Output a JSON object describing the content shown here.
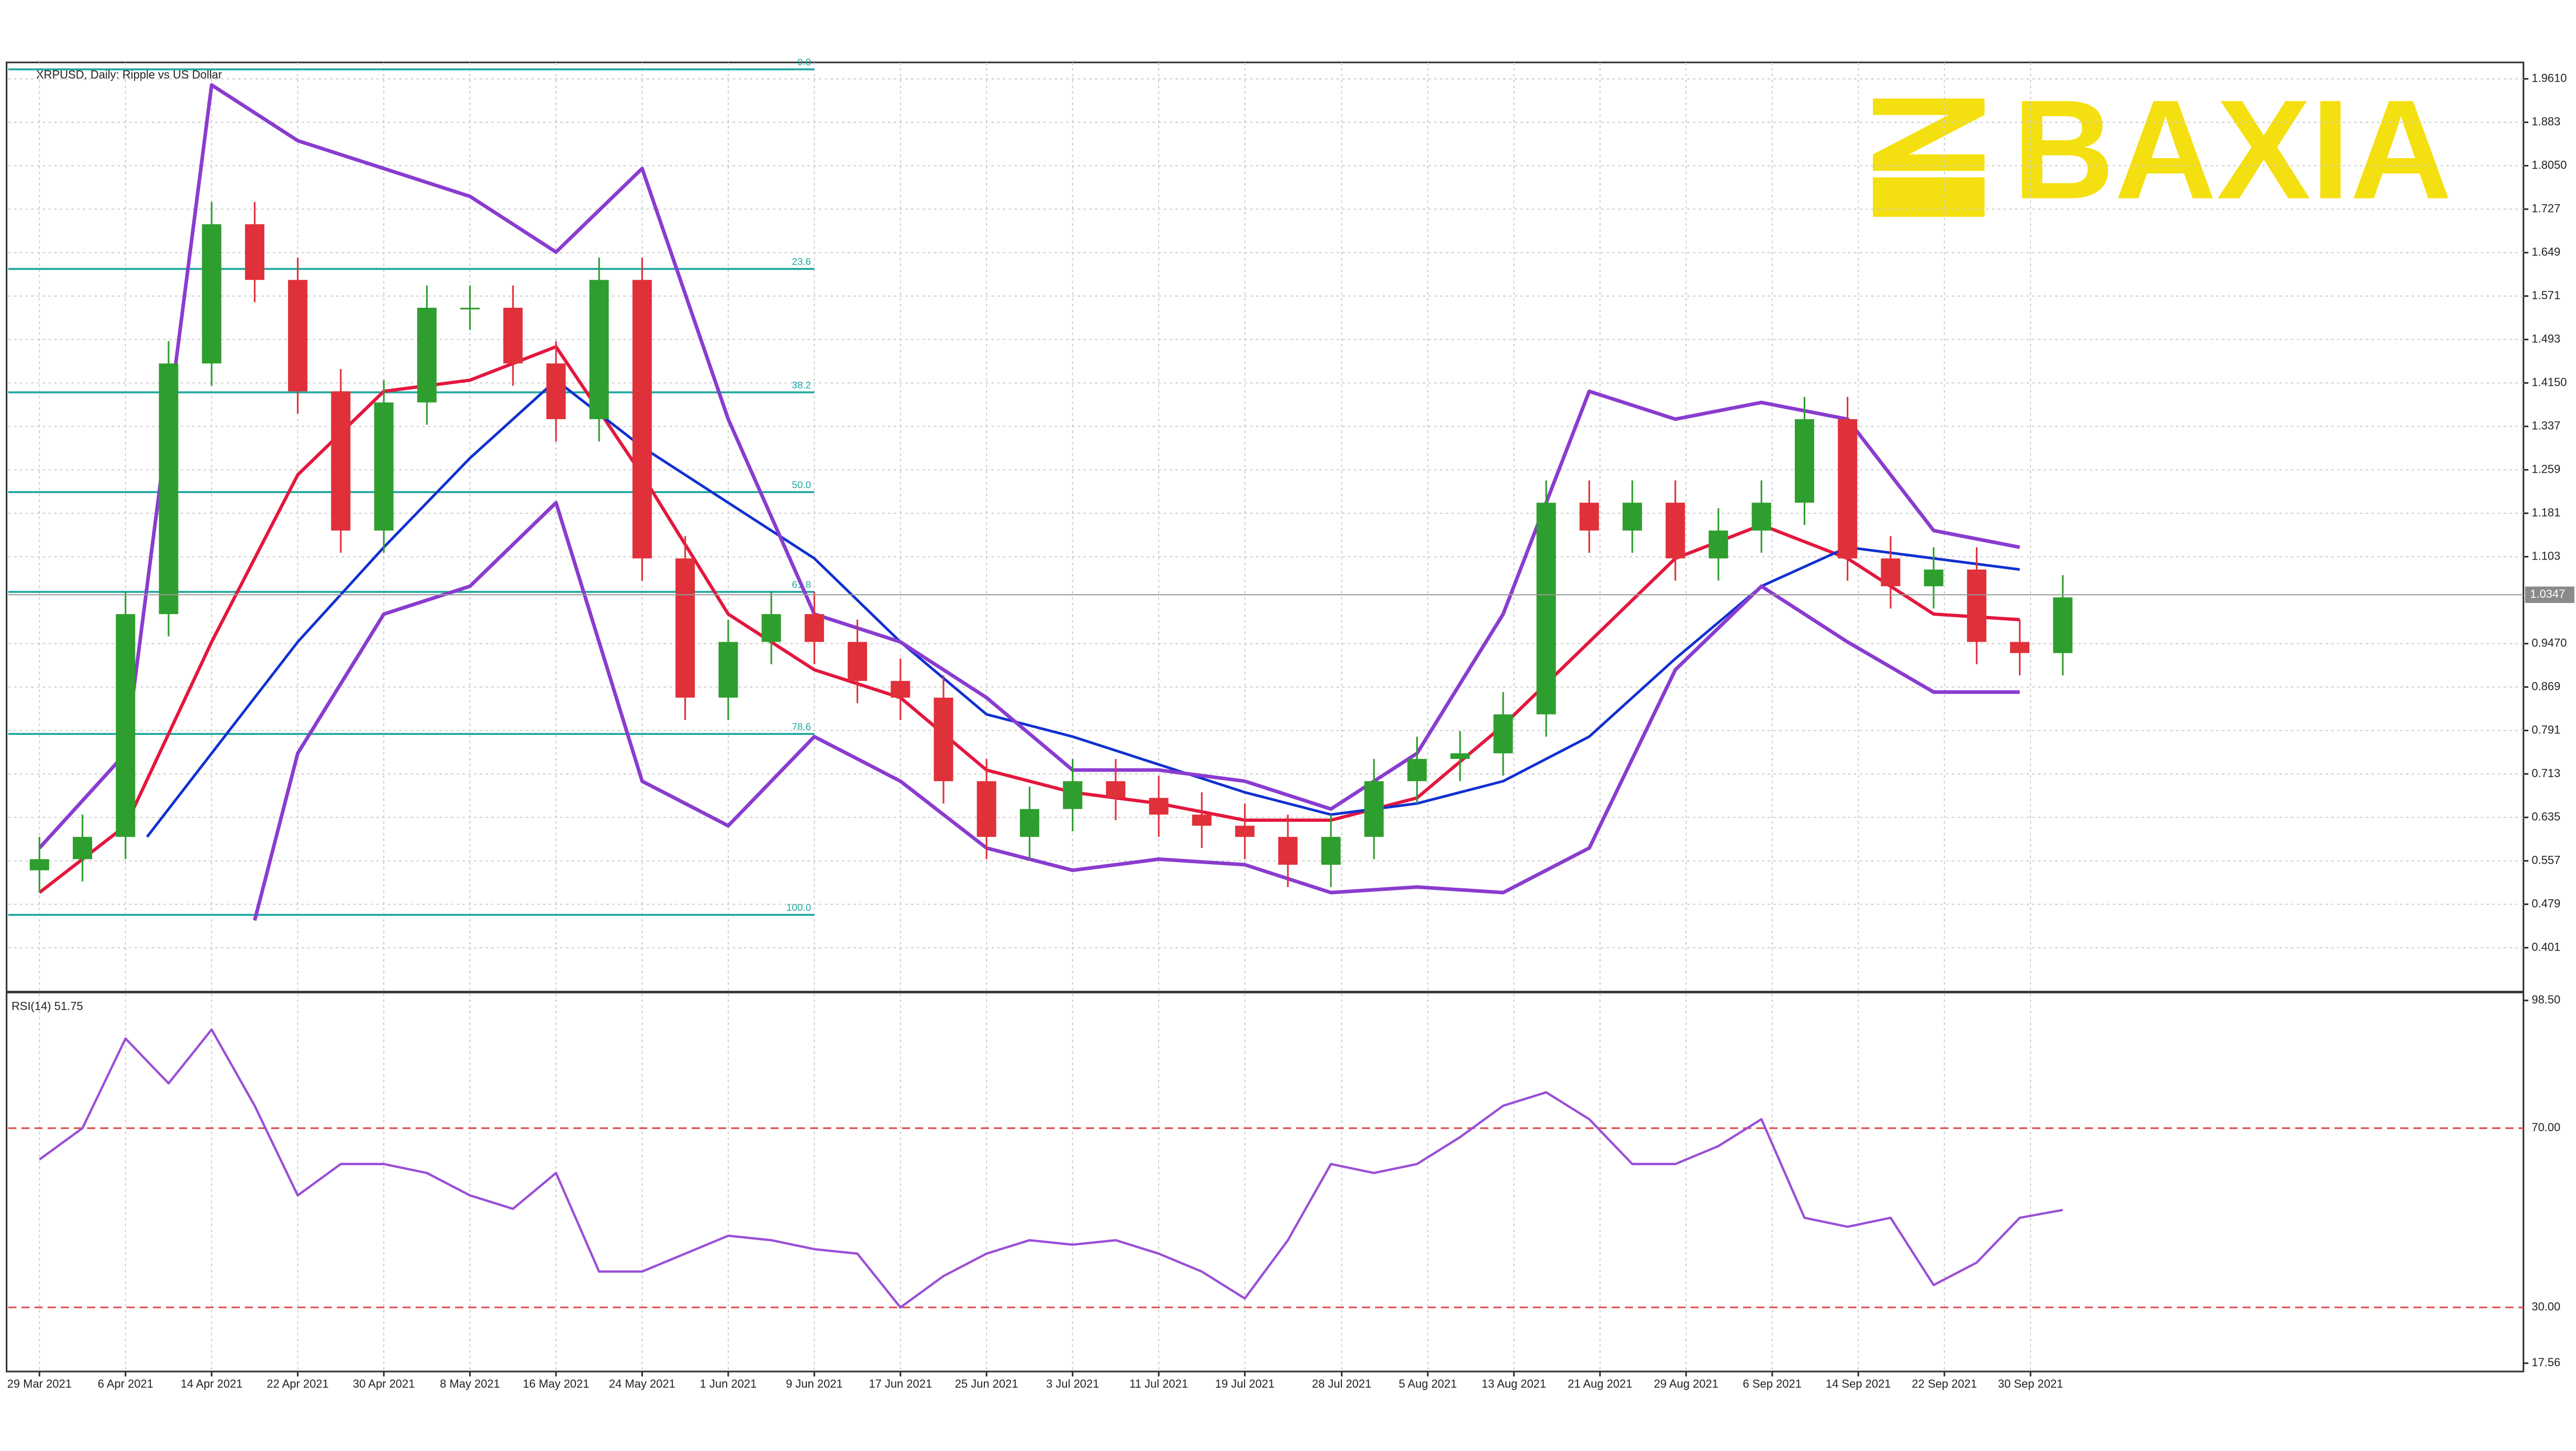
{
  "chart_data": {
    "type": "candlestick",
    "title": "XRPUSD, Daily: Ripple vs US Dollar",
    "logo": "BAXIA",
    "xlim": [
      -2.9,
      230.8
    ],
    "ylim": [
      0.3243,
      1.9905
    ],
    "grid": true,
    "xticks": [
      {
        "value": 0,
        "label": "29 Mar 2021"
      },
      {
        "value": 8,
        "label": "6 Apr 2021"
      },
      {
        "value": 16,
        "label": "14 Apr 2021"
      },
      {
        "value": 24,
        "label": "22 Apr 2021"
      },
      {
        "value": 32,
        "label": "30 Apr 2021"
      },
      {
        "value": 40,
        "label": "8 May 2021"
      },
      {
        "value": 48,
        "label": "16 May 2021"
      },
      {
        "value": 56,
        "label": "24 May 2021"
      },
      {
        "value": 64,
        "label": "1 Jun 2021"
      },
      {
        "value": 72,
        "label": "9 Jun 2021"
      },
      {
        "value": 80,
        "label": "17 Jun 2021"
      },
      {
        "value": 88,
        "label": "25 Jun 2021"
      },
      {
        "value": 96,
        "label": "3 Jul 2021"
      },
      {
        "value": 104,
        "label": "11 Jul 2021"
      },
      {
        "value": 112,
        "label": "19 Jul 2021"
      },
      {
        "value": 121,
        "label": "28 Jul 2021"
      },
      {
        "value": 129,
        "label": "5 Aug 2021"
      },
      {
        "value": 137,
        "label": "13 Aug 2021"
      },
      {
        "value": 145,
        "label": "21 Aug 2021"
      },
      {
        "value": 153,
        "label": "29 Aug 2021"
      },
      {
        "value": 161,
        "label": "6 Sep 2021"
      },
      {
        "value": 169,
        "label": "14 Sep 2021"
      },
      {
        "value": 177,
        "label": "22 Sep 2021"
      },
      {
        "value": 185,
        "label": "30 Sep 2021"
      }
    ],
    "yticks": [
      {
        "value": 1.961,
        "label": "1.9610"
      },
      1.883,
      {
        "value": 1.805,
        "label": "1.8050"
      },
      1.727,
      1.649,
      1.571,
      1.493,
      {
        "value": 1.415,
        "label": "1.4150"
      },
      1.337,
      1.259,
      1.181,
      1.103,
      {
        "value": 0.947,
        "label": "0.9470"
      },
      0.869,
      0.791,
      0.713,
      0.635,
      0.557,
      0.479,
      0.401
    ],
    "last_price": 1.0347,
    "candles": {
      "x": [
        0,
        4,
        8,
        12,
        16,
        20,
        24,
        28,
        32,
        36,
        40,
        44,
        48,
        52,
        56,
        60,
        64,
        68,
        72,
        76,
        80,
        84,
        88,
        92,
        96,
        100,
        104,
        108,
        112,
        116,
        120,
        124,
        128,
        132,
        136,
        140,
        144,
        148,
        152,
        156,
        160,
        164,
        168,
        172,
        176,
        180,
        184,
        188
      ],
      "open": [
        0.54,
        0.56,
        0.6,
        1.0,
        1.45,
        1.7,
        1.6,
        1.4,
        1.15,
        1.38,
        1.55,
        1.55,
        1.45,
        1.35,
        1.6,
        1.1,
        0.85,
        0.95,
        1.0,
        0.95,
        0.88,
        0.85,
        0.7,
        0.6,
        0.65,
        0.7,
        0.67,
        0.64,
        0.62,
        0.6,
        0.55,
        0.6,
        0.7,
        0.74,
        0.75,
        0.82,
        1.2,
        1.15,
        1.2,
        1.1,
        1.15,
        1.2,
        1.35,
        1.1,
        1.05,
        1.08,
        0.95,
        0.93
      ],
      "high": [
        0.6,
        0.64,
        1.04,
        1.49,
        1.74,
        1.74,
        1.64,
        1.44,
        1.42,
        1.59,
        1.59,
        1.59,
        1.49,
        1.64,
        1.64,
        1.14,
        0.99,
        1.04,
        1.04,
        0.99,
        0.92,
        0.89,
        0.74,
        0.69,
        0.74,
        0.74,
        0.71,
        0.68,
        0.66,
        0.64,
        0.64,
        0.74,
        0.78,
        0.79,
        0.86,
        1.24,
        1.24,
        1.24,
        1.24,
        1.19,
        1.24,
        1.39,
        1.39,
        1.14,
        1.12,
        1.12,
        0.99,
        1.07
      ],
      "low": [
        0.5,
        0.52,
        0.56,
        0.96,
        1.41,
        1.56,
        1.36,
        1.11,
        1.11,
        1.34,
        1.51,
        1.41,
        1.31,
        1.31,
        1.06,
        0.81,
        0.81,
        0.91,
        0.91,
        0.84,
        0.81,
        0.66,
        0.56,
        0.56,
        0.61,
        0.63,
        0.6,
        0.58,
        0.56,
        0.51,
        0.51,
        0.56,
        0.66,
        0.7,
        0.71,
        0.78,
        1.11,
        1.11,
        1.06,
        1.06,
        1.11,
        1.16,
        1.06,
        1.01,
        1.01,
        0.91,
        0.89,
        0.89
      ],
      "close": [
        0.56,
        0.6,
        1.0,
        1.45,
        1.7,
        1.6,
        1.4,
        1.15,
        1.38,
        1.55,
        1.55,
        1.45,
        1.35,
        1.6,
        1.1,
        0.85,
        0.95,
        1.0,
        0.95,
        0.88,
        0.85,
        0.7,
        0.6,
        0.65,
        0.7,
        0.67,
        0.64,
        0.62,
        0.6,
        0.55,
        0.6,
        0.7,
        0.74,
        0.75,
        0.82,
        1.2,
        1.15,
        1.2,
        1.1,
        1.15,
        1.2,
        1.35,
        1.1,
        1.05,
        1.08,
        0.95,
        0.93,
        1.03
      ],
      "up_color": "#2e9e2e",
      "down_color": "#e0303a"
    },
    "lines": [
      {
        "color": "#e3173e",
        "width": 2,
        "x": [
          0,
          8,
          16,
          24,
          32,
          40,
          48,
          56,
          64,
          72,
          80,
          88,
          96,
          104,
          112,
          120,
          128,
          136,
          144,
          152,
          160,
          168,
          176,
          184
        ],
        "values": [
          0.5,
          0.62,
          0.95,
          1.25,
          1.4,
          1.42,
          1.48,
          1.25,
          1.0,
          0.9,
          0.85,
          0.72,
          0.68,
          0.66,
          0.63,
          0.63,
          0.67,
          0.8,
          0.95,
          1.1,
          1.16,
          1.1,
          1.0,
          0.99
        ]
      },
      {
        "color": "#1030d0",
        "width": 1.6,
        "x": [
          10,
          16,
          24,
          32,
          40,
          48,
          56,
          64,
          72,
          80,
          88,
          96,
          104,
          112,
          120,
          128,
          136,
          144,
          152,
          160,
          168,
          176,
          184
        ],
        "values": [
          0.6,
          0.75,
          0.95,
          1.12,
          1.28,
          1.42,
          1.3,
          1.2,
          1.1,
          0.95,
          0.82,
          0.78,
          0.73,
          0.68,
          0.64,
          0.66,
          0.7,
          0.78,
          0.92,
          1.05,
          1.12,
          1.1,
          1.08
        ]
      },
      {
        "color": "#8a3ccf",
        "width": 2.2,
        "x": [
          0,
          8,
          16,
          24,
          32,
          40,
          48,
          56,
          64,
          72,
          80,
          88,
          96,
          104,
          112,
          120,
          128,
          136,
          144,
          152,
          160,
          168,
          176,
          184
        ],
        "values": [
          0.58,
          0.75,
          1.95,
          1.85,
          1.8,
          1.75,
          1.65,
          1.8,
          1.35,
          1.0,
          0.95,
          0.85,
          0.72,
          0.72,
          0.7,
          0.65,
          0.75,
          1.0,
          1.4,
          1.35,
          1.38,
          1.35,
          1.15,
          1.12
        ]
      },
      {
        "color": "#8a3ccf",
        "width": 2.2,
        "x": [
          20,
          24,
          32,
          40,
          48,
          56,
          64,
          72,
          80,
          88,
          96,
          104,
          112,
          120,
          128,
          136,
          144,
          152,
          160,
          168,
          176,
          184
        ],
        "values": [
          0.45,
          0.75,
          1.0,
          1.05,
          1.2,
          0.7,
          0.62,
          0.78,
          0.7,
          0.58,
          0.54,
          0.56,
          0.55,
          0.5,
          0.51,
          0.5,
          0.58,
          0.9,
          1.05,
          0.95,
          0.86,
          0.86
        ]
      }
    ],
    "fib": {
      "high": 1.978,
      "low": 0.46,
      "x_end": 72,
      "color": "#20a8a0",
      "levels": [
        {
          "value": 0,
          "label": "0.0"
        },
        23.6,
        38.2,
        {
          "value": 50,
          "label": "50.0"
        },
        61.8,
        78.6,
        {
          "value": 100,
          "label": "100.0"
        }
      ]
    },
    "rsi": {
      "label": "RSI(14) 51.75",
      "color": "#9a4fd6",
      "ylim": [
        15.7,
        100
      ],
      "yticks": [
        {
          "value": 98.5,
          "label": "98.50"
        },
        17.56
      ],
      "levels": [
        {
          "value": 70,
          "label": "70.00"
        },
        {
          "value": 30,
          "label": "30.00"
        }
      ],
      "level_color": "#e05050",
      "x": [
        0,
        4,
        8,
        12,
        16,
        20,
        24,
        28,
        32,
        36,
        40,
        44,
        48,
        52,
        56,
        60,
        64,
        68,
        72,
        76,
        80,
        84,
        88,
        92,
        96,
        100,
        104,
        108,
        112,
        116,
        120,
        124,
        128,
        132,
        136,
        140,
        144,
        148,
        152,
        156,
        160,
        164,
        168,
        172,
        176,
        180,
        184,
        188
      ],
      "values": [
        63,
        70,
        90,
        80,
        92,
        75,
        55,
        62,
        62,
        60,
        55,
        52,
        60,
        38,
        38,
        42,
        46,
        45,
        43,
        42,
        30,
        37,
        42,
        45,
        44,
        45,
        42,
        38,
        32,
        45,
        62,
        60,
        62,
        68,
        75,
        78,
        72,
        62,
        62,
        66,
        72,
        50,
        48,
        50,
        35,
        40,
        50,
        51.75
      ]
    }
  }
}
